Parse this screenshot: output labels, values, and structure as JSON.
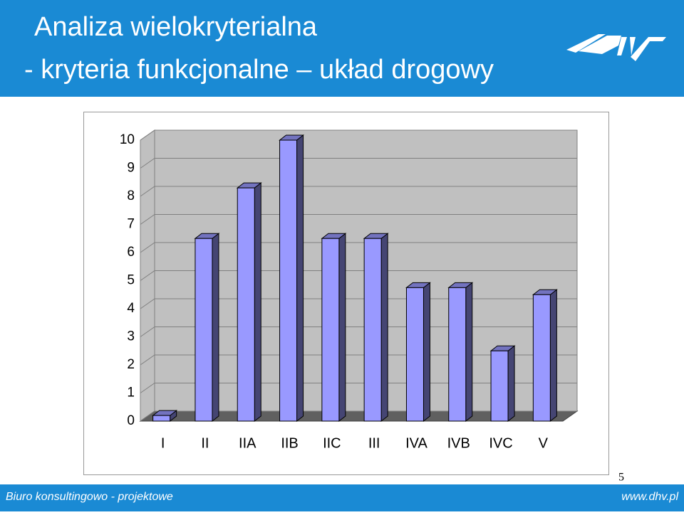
{
  "header": {
    "title_line1": "Analiza wielokryterialna",
    "title_line2": "- kryteria funkcjonalne – układ drogowy"
  },
  "footer": {
    "left": "Biuro konsultingowo - projektowe",
    "right": "www.dhv.pl",
    "page_number": "5"
  },
  "chart_data": {
    "type": "bar",
    "categories": [
      "I",
      "II",
      "IIA",
      "IIB",
      "IIC",
      "III",
      "IVA",
      "IVB",
      "IVC",
      "V"
    ],
    "values": [
      0.2,
      6.5,
      8.3,
      10,
      6.5,
      6.5,
      4.75,
      4.75,
      2.5,
      4.5
    ],
    "color": "#9999ff",
    "ylim": [
      0,
      10
    ],
    "yticks": [
      0,
      1,
      2,
      3,
      4,
      5,
      6,
      7,
      8,
      9,
      10
    ],
    "grid": true
  }
}
